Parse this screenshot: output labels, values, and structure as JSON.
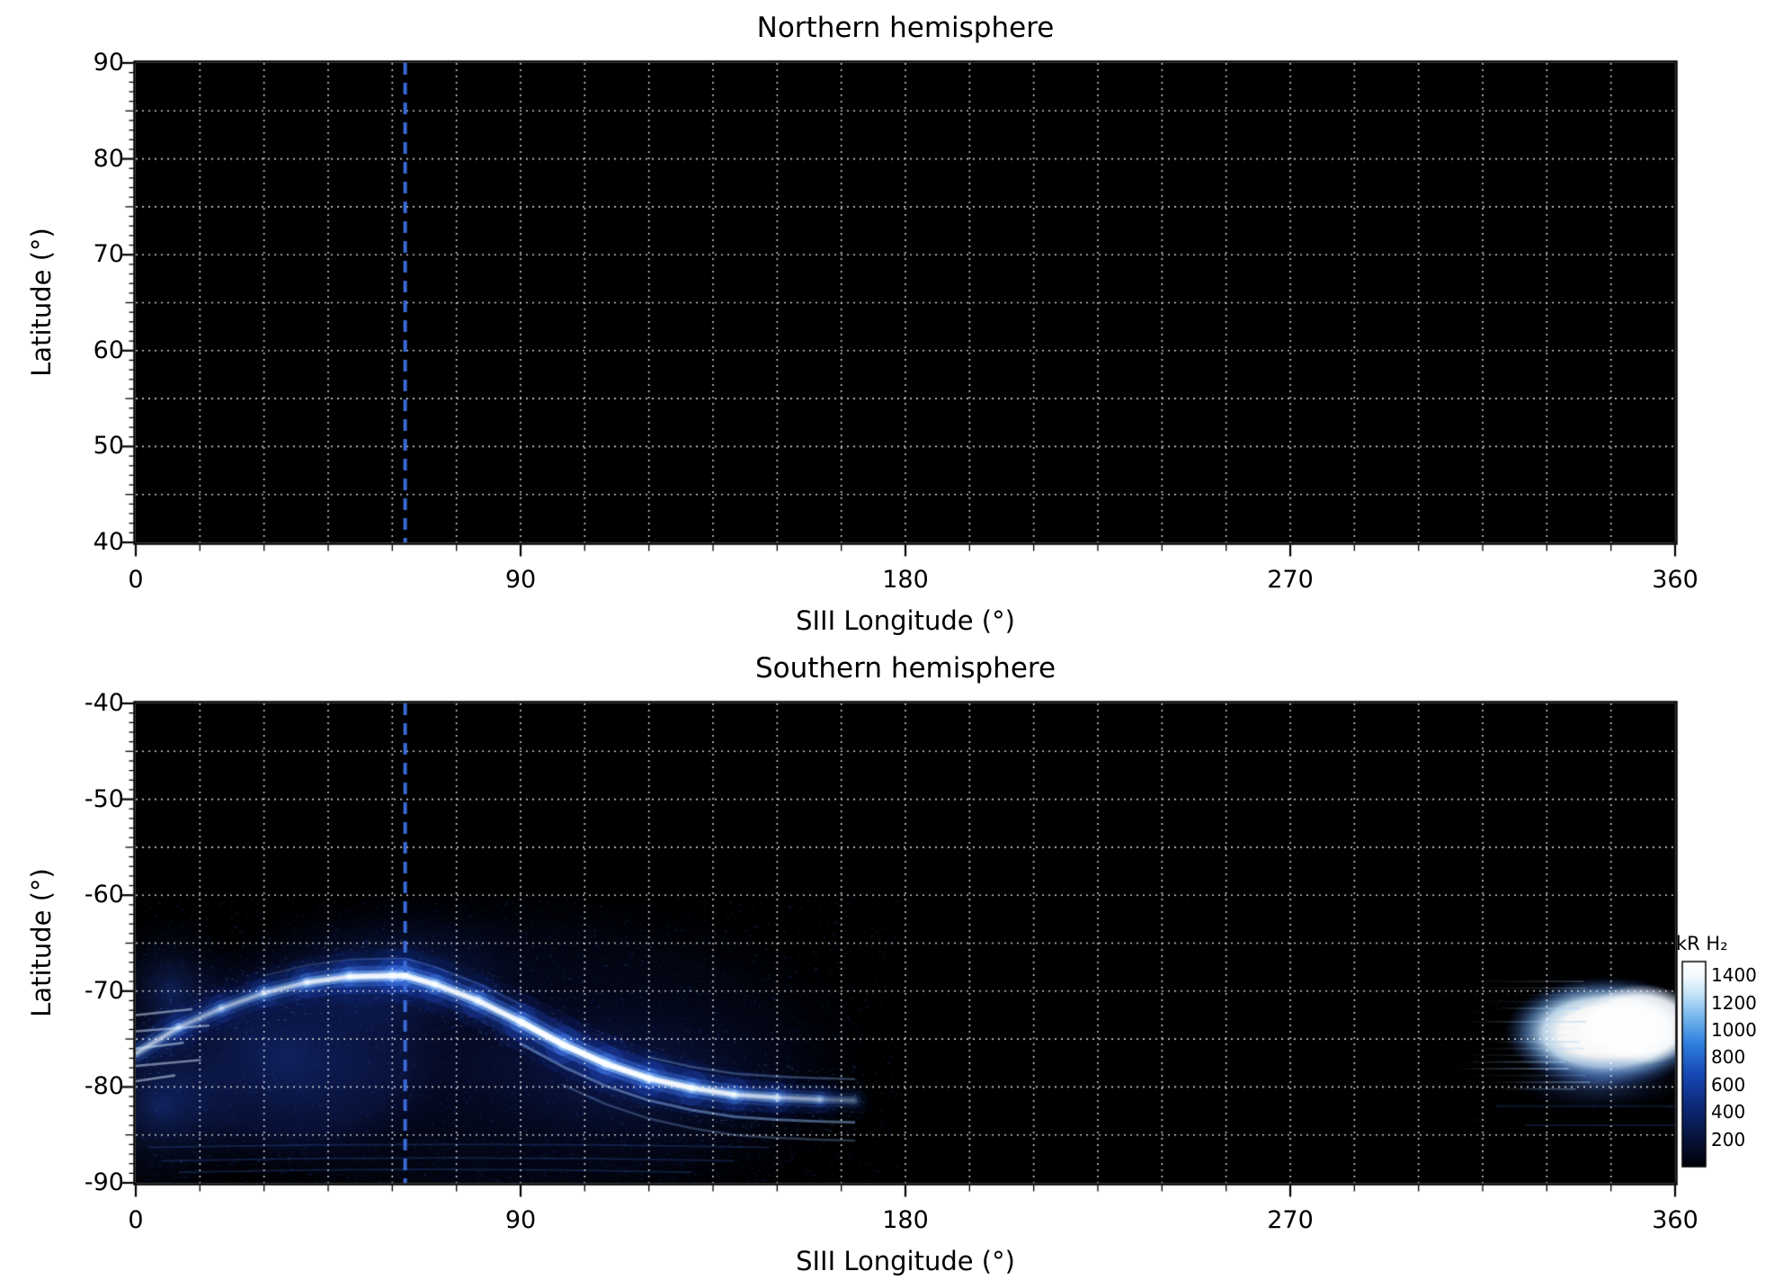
{
  "figure": {
    "background_color": "#ffffff",
    "panels": [
      {
        "title": "Northern hemisphere",
        "xlabel": "SIII Longitude (°)",
        "ylabel": "Latitude (°)",
        "xtick_labels": [
          "0",
          "90",
          "180",
          "270",
          "360"
        ],
        "ytick_labels": [
          "90",
          "80",
          "70",
          "60",
          "50",
          "40"
        ]
      },
      {
        "title": "Southern hemisphere",
        "xlabel": "SIII Longitude (°)",
        "ylabel": "Latitude (°)",
        "xtick_labels": [
          "0",
          "90",
          "180",
          "270",
          "360"
        ],
        "ytick_labels": [
          "-40",
          "-50",
          "-60",
          "-70",
          "-80",
          "-90"
        ]
      }
    ],
    "colorbar": {
      "label": "kR H₂",
      "tick_labels": [
        "1400",
        "1200",
        "1000",
        "800",
        "600",
        "400",
        "200"
      ]
    }
  },
  "chart_data": [
    {
      "type": "heatmap",
      "title": "Northern hemisphere",
      "xlabel": "SIII Longitude (°)",
      "ylabel": "Latitude (°)",
      "xlim": [
        0,
        360
      ],
      "ylim": [
        40,
        90
      ],
      "xticks": [
        0,
        90,
        180,
        270,
        360
      ],
      "yticks": [
        90,
        80,
        70,
        60,
        50,
        40
      ],
      "grid": {
        "on": true,
        "style": "dotted",
        "color": "#ffffff",
        "x_step": 15,
        "y_step": 5
      },
      "background": "#000000",
      "marker_line": {
        "longitude": 63,
        "style": "dashed",
        "color": "#3b6ad6"
      },
      "emission": "none visible (panel entirely dark / no detected H2 auroral emission)"
    },
    {
      "type": "heatmap",
      "title": "Southern hemisphere",
      "xlabel": "SIII Longitude (°)",
      "ylabel": "Latitude (°)",
      "xlim": [
        0,
        360
      ],
      "ylim": [
        -90,
        -40
      ],
      "xticks": [
        0,
        90,
        180,
        270,
        360
      ],
      "yticks": [
        -40,
        -50,
        -60,
        -70,
        -80,
        -90
      ],
      "grid": {
        "on": true,
        "style": "dotted",
        "color": "#ffffff",
        "x_step": 15,
        "y_step": 5
      },
      "background": "#000000",
      "marker_line": {
        "longitude": 63,
        "style": "dashed",
        "color": "#3b6ad6"
      },
      "colorbar": {
        "label": "kR H₂",
        "range": [
          0,
          1500
        ],
        "ticks": [
          200,
          400,
          600,
          800,
          1000,
          1200,
          1400
        ],
        "colormap": "black-blue-white"
      },
      "features": {
        "main_auroral_oval": {
          "description": "bright main auroral emission arc, brightest near 40-140 deg longitude, fading near 170 deg",
          "points_lon_lat_kR": [
            [
              0,
              -76.5,
              900
            ],
            [
              10,
              -73.8,
              750
            ],
            [
              20,
              -71.8,
              700
            ],
            [
              30,
              -70.2,
              800
            ],
            [
              40,
              -69.1,
              950
            ],
            [
              50,
              -68.5,
              1200
            ],
            [
              60,
              -68.4,
              1300
            ],
            [
              63,
              -68.4,
              1300
            ],
            [
              70,
              -69.3,
              1250
            ],
            [
              80,
              -71.0,
              1150
            ],
            [
              90,
              -73.2,
              1350
            ],
            [
              100,
              -75.6,
              1450
            ],
            [
              110,
              -77.6,
              1400
            ],
            [
              120,
              -79.1,
              1300
            ],
            [
              130,
              -80.1,
              1250
            ],
            [
              140,
              -80.8,
              1050
            ],
            [
              150,
              -81.1,
              850
            ],
            [
              160,
              -81.3,
              600
            ],
            [
              168,
              -81.4,
              400
            ]
          ]
        },
        "active_region": {
          "description": "saturated bright emission patch touching the right edge of the map",
          "lon_range": [
            320,
            360
          ],
          "lat_range": [
            -80,
            -69
          ],
          "peak_kR": 1500
        },
        "diffuse_emission": {
          "description": "faint diffuse blue emission over the observed sector",
          "lon_range": [
            0,
            175
          ],
          "lat_range": [
            -90,
            -60
          ],
          "typical_kR": 150
        }
      }
    }
  ]
}
